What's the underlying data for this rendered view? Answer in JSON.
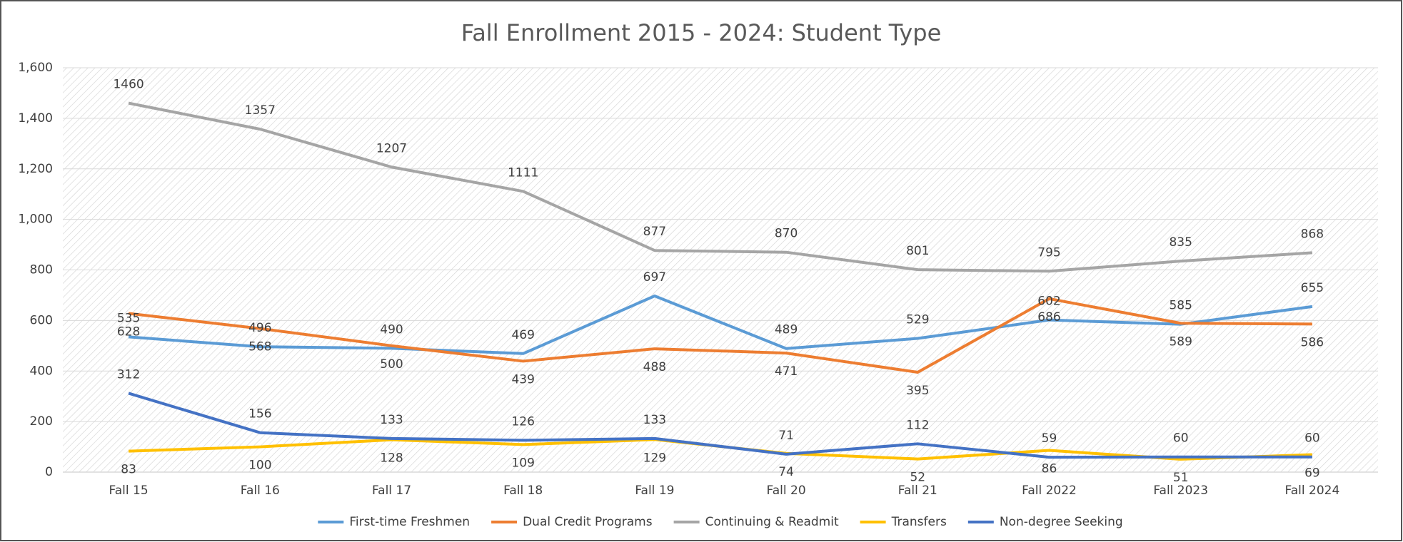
{
  "chart_data": {
    "type": "line",
    "title": "Fall Enrollment 2015 - 2024: Student Type",
    "categories": [
      "Fall 15",
      "Fall 16",
      "Fall 17",
      "Fall 18",
      "Fall 19",
      "Fall 20",
      "Fall 21",
      "Fall 2022",
      "Fall 2023",
      "Fall 2024"
    ],
    "series": [
      {
        "name": "First-time Freshmen",
        "color": "#5b9bd5",
        "label_position": "above",
        "values": [
          535,
          496,
          490,
          469,
          697,
          489,
          529,
          602,
          585,
          655
        ]
      },
      {
        "name": "Dual Credit Programs",
        "color": "#ed7d31",
        "label_position": "below",
        "values": [
          628,
          568,
          500,
          439,
          488,
          471,
          395,
          686,
          589,
          586
        ]
      },
      {
        "name": "Continuing & Readmit",
        "color": "#a5a5a5",
        "label_position": "above",
        "values": [
          1460,
          1357,
          1207,
          1111,
          877,
          870,
          801,
          795,
          835,
          868
        ]
      },
      {
        "name": "Transfers",
        "color": "#ffc000",
        "label_position": "below",
        "values": [
          83,
          100,
          128,
          109,
          129,
          74,
          52,
          86,
          51,
          69
        ]
      },
      {
        "name": "Non-degree Seeking",
        "color": "#4472c4",
        "label_position": "above",
        "values": [
          312,
          156,
          133,
          126,
          133,
          71,
          112,
          59,
          60,
          60
        ]
      }
    ],
    "ylim": [
      0,
      1600
    ],
    "yticks": [
      0,
      200,
      400,
      600,
      800,
      {
        "value": 1000,
        "label": "1,000"
      },
      {
        "value": 1200,
        "label": "1,200"
      },
      {
        "value": 1400,
        "label": "1,400"
      },
      {
        "value": 1600,
        "label": "1,600"
      }
    ],
    "grid": true,
    "legend": "bottom"
  }
}
